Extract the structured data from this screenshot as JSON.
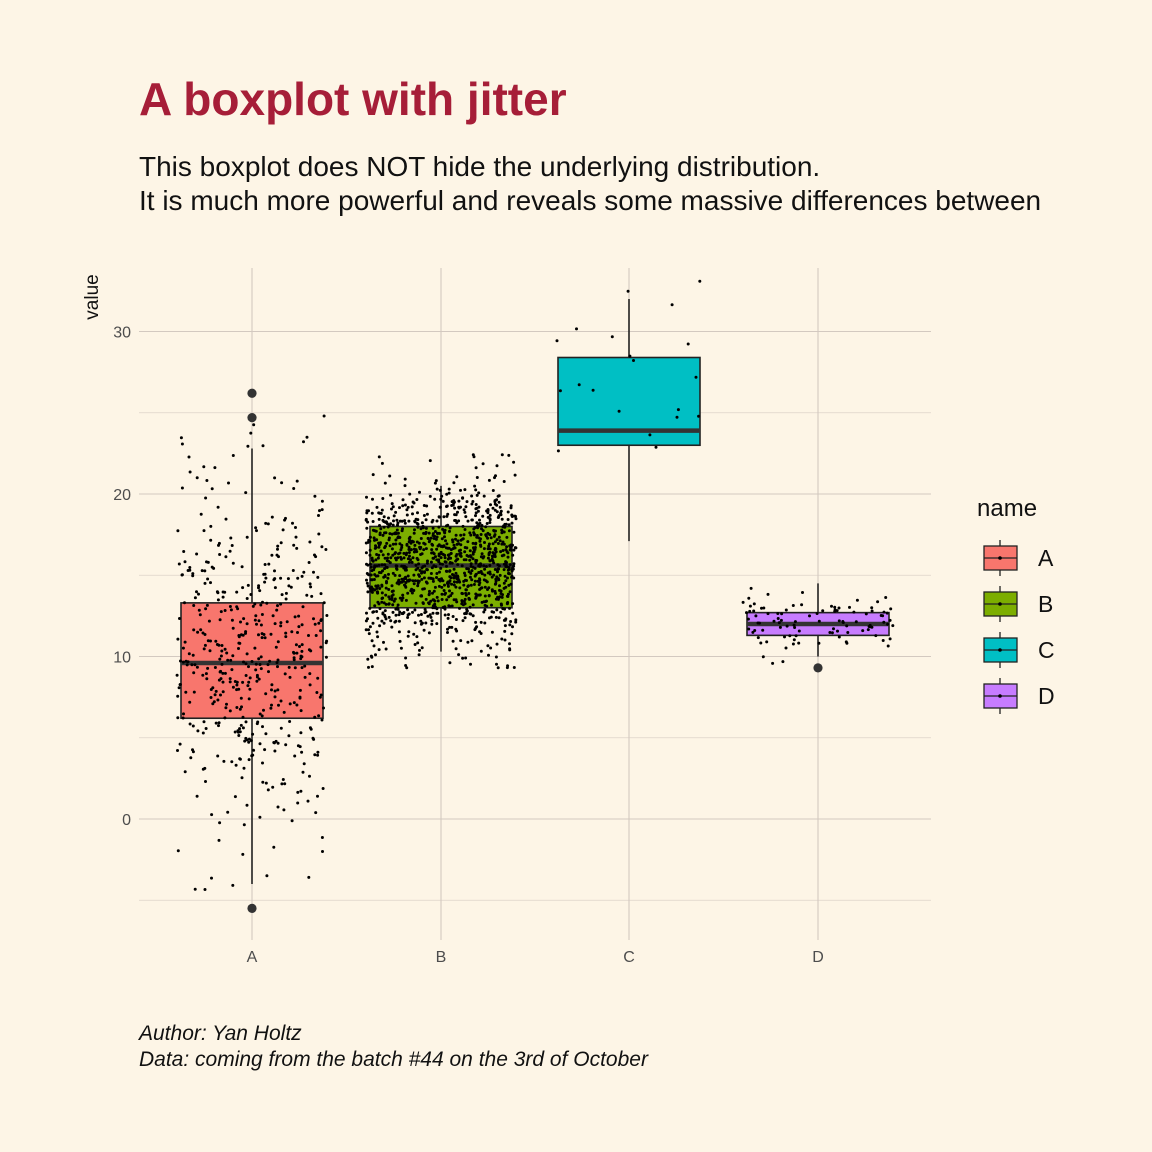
{
  "chart_data": {
    "type": "boxplot",
    "title": "A boxplot with jitter",
    "subtitle_lines": [
      "This boxplot does NOT hide the underlying distribution.",
      "It is much more powerful and reveals some massive differences between"
    ],
    "caption_lines": [
      "Author: Yan Holtz",
      "Data: coming from the batch #44 on the 3rd of October"
    ],
    "xlabel": "",
    "ylabel": "value",
    "ylim": [
      -7.5,
      34
    ],
    "yticks": [
      0,
      10,
      20,
      30
    ],
    "categories": [
      "A",
      "B",
      "C",
      "D"
    ],
    "legend": {
      "title": "name",
      "position": "right"
    },
    "grid": true,
    "boxes": [
      {
        "name": "A",
        "color": "#f8766d",
        "q1": 6.2,
        "median": 9.6,
        "q3": 13.3,
        "whisker_low": -4.0,
        "whisker_high": 22.8,
        "outliers": [
          26.2,
          24.7,
          -5.5
        ],
        "n_points": 500,
        "spread": 5.6,
        "center": 10
      },
      {
        "name": "B",
        "color": "#7cae00",
        "q1": 13.0,
        "median": 15.6,
        "q3": 18.0,
        "whisker_low": 10.3,
        "whisker_high": 20.5,
        "outliers": [],
        "n_points": 1200,
        "spread": 2.5,
        "center": 15.5
      },
      {
        "name": "C",
        "color": "#00bfc4",
        "q1": 23.0,
        "median": 23.9,
        "q3": 28.4,
        "whisker_low": 17.1,
        "whisker_high": 32.0,
        "outliers": [],
        "n_points": 20,
        "spread": 4.5,
        "center": 25
      },
      {
        "name": "D",
        "color": "#c77cff",
        "q1": 11.3,
        "median": 12.0,
        "q3": 12.7,
        "whisker_low": 10.0,
        "whisker_high": 14.5,
        "outliers": [
          9.3
        ],
        "n_points": 100,
        "spread": 1.0,
        "center": 12
      }
    ]
  }
}
